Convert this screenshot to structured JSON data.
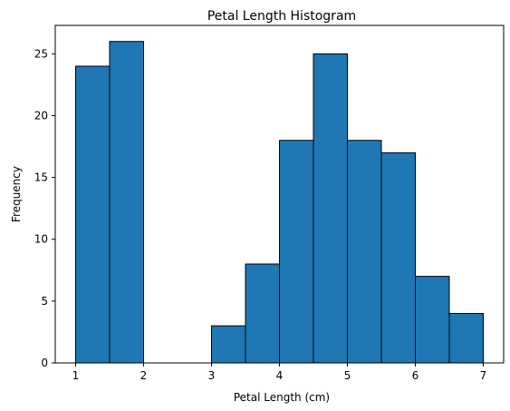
{
  "chart_data": {
    "type": "bar",
    "title": "Petal Length Histogram",
    "xlabel": "Petal Length (cm)",
    "ylabel": "Frequency",
    "xlim": [
      0.7,
      7.3
    ],
    "ylim": [
      0,
      27.3
    ],
    "xticks": [
      1,
      2,
      3,
      4,
      5,
      6,
      7
    ],
    "yticks": [
      0,
      5,
      10,
      15,
      20,
      25
    ],
    "bin_edges": [
      1.0,
      1.5,
      2.0,
      2.5,
      3.0,
      3.5,
      4.0,
      4.5,
      5.0,
      5.5,
      6.0,
      6.5,
      7.0
    ],
    "counts": [
      24,
      26,
      0,
      0,
      3,
      8,
      18,
      25,
      18,
      17,
      7,
      4
    ],
    "bar_color": "#1f77b4",
    "edge_color": "#000000",
    "grid": false,
    "legend": "none"
  }
}
